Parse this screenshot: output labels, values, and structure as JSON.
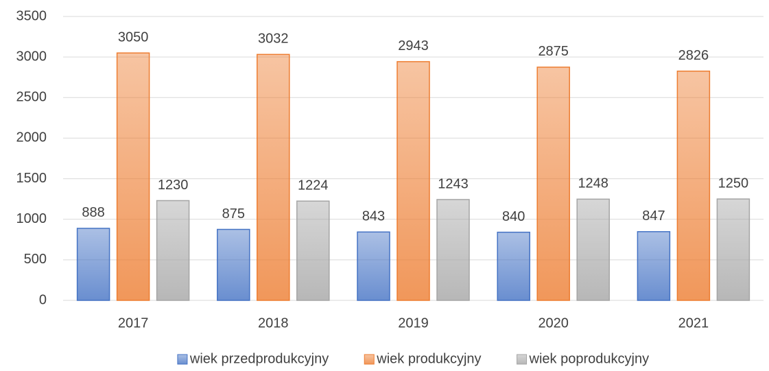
{
  "chart_data": {
    "type": "bar",
    "categories": [
      "2017",
      "2018",
      "2019",
      "2020",
      "2021"
    ],
    "series": [
      {
        "name": "wiek przedprodukcyjny",
        "color": "#4472c4",
        "values": [
          888,
          875,
          843,
          840,
          847
        ]
      },
      {
        "name": "wiek produkcyjny",
        "color": "#ed7d31",
        "values": [
          3050,
          3032,
          2943,
          2875,
          2826
        ]
      },
      {
        "name": "wiek poprodukcyjny",
        "color": "#a5a5a5",
        "values": [
          1230,
          1224,
          1243,
          1248,
          1250
        ]
      }
    ],
    "ylim": [
      0,
      3500
    ],
    "yticks": [
      0,
      500,
      1000,
      1500,
      2000,
      2500,
      3000,
      3500
    ],
    "grid": true,
    "legend": "bottom"
  }
}
